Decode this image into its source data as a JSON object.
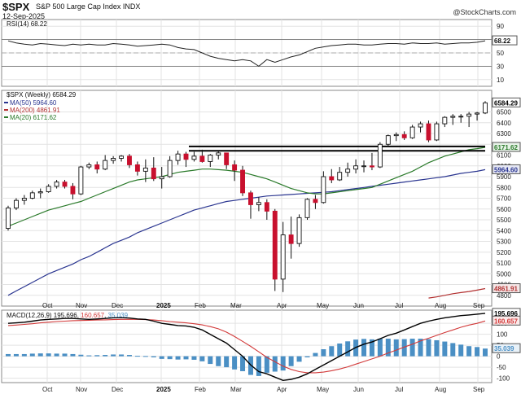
{
  "header": {
    "symbol": "$SPX",
    "name": "S&P 500 Large Cap Index  INDX",
    "date": "12-Sep-2025",
    "credit": "@StockCharts.com"
  },
  "chart_data": [
    {
      "type": "line",
      "panel": "rsi",
      "title": "RSI(14) 68.22",
      "current_label": "68.22",
      "ylim": [
        0,
        100
      ],
      "y_ticks": [
        10,
        30,
        50,
        70,
        90
      ],
      "values": [
        68,
        65,
        63,
        62,
        64,
        63,
        62,
        61,
        63,
        62,
        63,
        62,
        62,
        64,
        63,
        62,
        60,
        61,
        62,
        63,
        62,
        58,
        56,
        55,
        50,
        45,
        42,
        40,
        38,
        40,
        38,
        30,
        40,
        36,
        40,
        44,
        47,
        52,
        57,
        59,
        61,
        62,
        63,
        63,
        62,
        62,
        63,
        64,
        64,
        63,
        65,
        64,
        64,
        65,
        63,
        64,
        65,
        65,
        66,
        68.22
      ]
    },
    {
      "type": "candlestick",
      "panel": "price",
      "title": "$SPX (Weekly) 6584.29",
      "current_label": "6584.29",
      "ylim": [
        4700,
        6700
      ],
      "y_ticks": [
        4800,
        4900,
        5000,
        5100,
        5200,
        5300,
        5400,
        5500,
        5600,
        5700,
        5800,
        5900,
        6000,
        6100,
        6200,
        6300,
        6400,
        6500
      ],
      "x_labels": [
        "Oct",
        "Nov",
        "Dec",
        "2025",
        "Feb",
        "Mar",
        "Apr",
        "May",
        "Jun",
        "Jul",
        "Aug",
        "Sep"
      ],
      "ohlc": [
        [
          5420,
          5630,
          5400,
          5610
        ],
        [
          5610,
          5700,
          5590,
          5680
        ],
        [
          5680,
          5730,
          5640,
          5700
        ],
        [
          5700,
          5770,
          5690,
          5750
        ],
        [
          5750,
          5790,
          5700,
          5760
        ],
        [
          5760,
          5830,
          5750,
          5810
        ],
        [
          5810,
          5870,
          5790,
          5850
        ],
        [
          5850,
          5870,
          5790,
          5810
        ],
        [
          5810,
          5840,
          5690,
          5740
        ],
        [
          5740,
          6000,
          5730,
          5990
        ],
        [
          5990,
          6030,
          5970,
          6010
        ],
        [
          6010,
          6040,
          5930,
          5970
        ],
        [
          5970,
          6100,
          5960,
          6050
        ],
        [
          6050,
          6090,
          6020,
          6070
        ],
        [
          6070,
          6100,
          6040,
          6090
        ],
        [
          6090,
          6110,
          5980,
          6010
        ],
        [
          6010,
          6040,
          5910,
          5950
        ],
        [
          5950,
          6060,
          5850,
          5980
        ],
        [
          5980,
          6080,
          5860,
          5880
        ],
        [
          5880,
          5990,
          5790,
          5900
        ],
        [
          5900,
          6090,
          5890,
          6050
        ],
        [
          6050,
          6140,
          6010,
          6110
        ],
        [
          6110,
          6130,
          5990,
          6060
        ],
        [
          6060,
          6130,
          6040,
          6090
        ],
        [
          6090,
          6150,
          6030,
          6040
        ],
        [
          6040,
          6110,
          5990,
          6100
        ],
        [
          6100,
          6140,
          6060,
          6120
        ],
        [
          6120,
          6120,
          5970,
          6010
        ],
        [
          6010,
          6050,
          5860,
          5960
        ],
        [
          5960,
          6000,
          5720,
          5750
        ],
        [
          5750,
          5770,
          5510,
          5640
        ],
        [
          5640,
          5710,
          5580,
          5660
        ],
        [
          5660,
          5690,
          5500,
          5580
        ],
        [
          5580,
          5600,
          4840,
          4950
        ],
        [
          4950,
          5480,
          4830,
          5360
        ],
        [
          5360,
          5530,
          5140,
          5280
        ],
        [
          5280,
          5550,
          5250,
          5520
        ],
        [
          5520,
          5700,
          5500,
          5690
        ],
        [
          5690,
          5730,
          5600,
          5660
        ],
        [
          5660,
          5950,
          5650,
          5900
        ],
        [
          5900,
          5970,
          5840,
          5870
        ],
        [
          5870,
          5990,
          5860,
          5940
        ],
        [
          5940,
          6030,
          5900,
          5970
        ],
        [
          5970,
          6060,
          5930,
          6000
        ],
        [
          6000,
          6050,
          5940,
          6000
        ],
        [
          6000,
          6120,
          5960,
          5990
        ],
        [
          5990,
          6220,
          5980,
          6200
        ],
        [
          6200,
          6290,
          6180,
          6280
        ],
        [
          6280,
          6310,
          6230,
          6290
        ],
        [
          6290,
          6320,
          6240,
          6260
        ],
        [
          6260,
          6380,
          6250,
          6360
        ],
        [
          6360,
          6410,
          6310,
          6390
        ],
        [
          6390,
          6420,
          6220,
          6240
        ],
        [
          6240,
          6410,
          6230,
          6390
        ],
        [
          6390,
          6460,
          6360,
          6450
        ],
        [
          6450,
          6480,
          6380,
          6460
        ],
        [
          6460,
          6480,
          6400,
          6460
        ],
        [
          6460,
          6500,
          6360,
          6480
        ],
        [
          6480,
          6500,
          6420,
          6490
        ],
        [
          6490,
          6600,
          6480,
          6584.29
        ]
      ],
      "series": [
        {
          "name": "MA(50) 5964.60",
          "color": "#2a3590",
          "current_label": "5964.60",
          "values": [
            4800,
            4840,
            4880,
            4920,
            4960,
            5000,
            5030,
            5060,
            5090,
            5130,
            5160,
            5200,
            5240,
            5280,
            5310,
            5340,
            5380,
            5410,
            5440,
            5470,
            5500,
            5530,
            5560,
            5590,
            5610,
            5630,
            5650,
            5670,
            5680,
            5690,
            5700,
            5710,
            5720,
            5725,
            5730,
            5735,
            5740,
            5745,
            5750,
            5755,
            5760,
            5770,
            5780,
            5790,
            5800,
            5810,
            5820,
            5830,
            5840,
            5850,
            5860,
            5870,
            5880,
            5890,
            5900,
            5915,
            5930,
            5940,
            5950,
            5964.6
          ]
        },
        {
          "name": "MA(200) 4861.91",
          "color": "#b23030",
          "current_label": "4861.91",
          "values": [
            null,
            null,
            null,
            null,
            null,
            null,
            null,
            null,
            null,
            null,
            null,
            null,
            null,
            null,
            null,
            null,
            null,
            null,
            null,
            null,
            null,
            null,
            null,
            null,
            null,
            null,
            null,
            null,
            null,
            null,
            null,
            null,
            null,
            null,
            null,
            null,
            null,
            null,
            null,
            null,
            null,
            null,
            null,
            null,
            null,
            null,
            null,
            null,
            null,
            null,
            null,
            null,
            4775,
            4785,
            4800,
            4815,
            4825,
            4835,
            4848,
            4861.91
          ]
        },
        {
          "name": "MA(20) 6171.62",
          "color": "#2a7a2a",
          "current_label": "6171.62",
          "values": [
            5440,
            5470,
            5500,
            5530,
            5560,
            5590,
            5610,
            5630,
            5650,
            5670,
            5700,
            5730,
            5760,
            5790,
            5820,
            5850,
            5870,
            5880,
            5890,
            5900,
            5920,
            5940,
            5950,
            5960,
            5970,
            5970,
            5965,
            5960,
            5950,
            5940,
            5920,
            5900,
            5880,
            5850,
            5820,
            5790,
            5770,
            5750,
            5740,
            5740,
            5750,
            5760,
            5770,
            5780,
            5790,
            5800,
            5830,
            5860,
            5890,
            5920,
            5950,
            5990,
            6030,
            6060,
            6090,
            6110,
            6130,
            6150,
            6160,
            6171.62
          ]
        }
      ],
      "resistance_levels": [
        6180,
        6140
      ]
    },
    {
      "type": "bar+line",
      "panel": "macd",
      "title": "MACD(12,26,9) 195.696, 160.657, 35.039",
      "ylim": [
        -120,
        210
      ],
      "y_ticks": [
        -100,
        -50,
        0,
        50,
        100,
        150
      ],
      "series": [
        {
          "name": "MACD 195.696",
          "color": "#000000",
          "current_label": "195.696",
          "values": [
            150,
            152,
            155,
            160,
            165,
            168,
            170,
            172,
            172,
            170,
            168,
            170,
            172,
            175,
            176,
            174,
            170,
            168,
            160,
            150,
            145,
            140,
            138,
            132,
            120,
            100,
            80,
            60,
            30,
            0,
            -40,
            -70,
            -80,
            -95,
            -110,
            -105,
            -95,
            -80,
            -60,
            -40,
            -20,
            0,
            20,
            40,
            55,
            65,
            80,
            95,
            105,
            120,
            135,
            150,
            160,
            168,
            175,
            180,
            185,
            188,
            192,
            195.696
          ]
        },
        {
          "name": "Signal 160.657",
          "color": "#d23a3a",
          "current_label": "160.657",
          "values": [
            140,
            142,
            145,
            148,
            152,
            155,
            158,
            160,
            162,
            163,
            164,
            165,
            166,
            167,
            168,
            168,
            168,
            167,
            165,
            162,
            158,
            155,
            152,
            148,
            143,
            135,
            125,
            110,
            90,
            68,
            45,
            20,
            -5,
            -25,
            -45,
            -60,
            -70,
            -75,
            -75,
            -72,
            -66,
            -58,
            -48,
            -36,
            -24,
            -12,
            0,
            15,
            28,
            42,
            55,
            70,
            82,
            95,
            108,
            120,
            132,
            142,
            150,
            160.657
          ]
        },
        {
          "name": "Histogram 35.039",
          "color": "#4a8fc4",
          "current_label": "35.039",
          "values": [
            10,
            10,
            10,
            12,
            13,
            13,
            12,
            12,
            10,
            7,
            4,
            5,
            6,
            8,
            8,
            6,
            2,
            1,
            -5,
            -12,
            -13,
            -15,
            -14,
            -16,
            -23,
            -35,
            -45,
            -50,
            -60,
            -68,
            -85,
            -90,
            -75,
            -70,
            -65,
            -45,
            -25,
            -5,
            15,
            32,
            46,
            58,
            68,
            76,
            79,
            77,
            80,
            80,
            77,
            78,
            80,
            80,
            78,
            73,
            67,
            60,
            53,
            46,
            42,
            35.039
          ]
        }
      ]
    }
  ]
}
